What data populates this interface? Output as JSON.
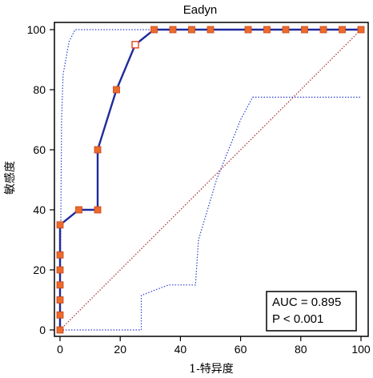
{
  "chart_data": {
    "type": "line",
    "title": "Eadyn",
    "xlabel": "1-特异度",
    "ylabel": "敏感度",
    "xlim": [
      0,
      100
    ],
    "ylim": [
      0,
      100
    ],
    "xticks": [
      "0",
      "20",
      "40",
      "60",
      "80",
      "100"
    ],
    "yticks": [
      "0",
      "20",
      "40",
      "60",
      "80",
      "100"
    ],
    "grid": false,
    "series": [
      {
        "kind": "roc",
        "color": "#1f2a9c",
        "marker_color": "#ee6a2a",
        "points": [
          [
            0,
            0
          ],
          [
            0,
            5
          ],
          [
            0,
            10
          ],
          [
            0,
            15
          ],
          [
            0,
            20
          ],
          [
            0,
            25
          ],
          [
            0,
            35
          ],
          [
            6.25,
            40
          ],
          [
            12.5,
            40
          ],
          [
            12.5,
            60
          ],
          [
            18.75,
            80
          ],
          [
            25,
            95
          ],
          [
            31.25,
            100
          ],
          [
            37.5,
            100
          ],
          [
            43.75,
            100
          ],
          [
            50,
            100
          ],
          [
            62.5,
            100
          ],
          [
            68.75,
            100
          ],
          [
            75,
            100
          ],
          [
            81.25,
            100
          ],
          [
            87.5,
            100
          ],
          [
            93.75,
            100
          ],
          [
            100,
            100
          ]
        ],
        "highlight_point": [
          25,
          95
        ]
      },
      {
        "kind": "ci_upper",
        "color": "#2f3fd0",
        "points": [
          [
            0,
            0
          ],
          [
            0.5,
            70
          ],
          [
            1,
            85
          ],
          [
            3,
            96
          ],
          [
            5,
            100
          ],
          [
            100,
            100
          ]
        ]
      },
      {
        "kind": "ci_lower",
        "color": "#2f3fd0",
        "points": [
          [
            0,
            0
          ],
          [
            27,
            0
          ],
          [
            27,
            11.5
          ],
          [
            36,
            15
          ],
          [
            45,
            15
          ],
          [
            46,
            30
          ],
          [
            52,
            50
          ],
          [
            60,
            70
          ],
          [
            64,
            77.5
          ],
          [
            100,
            77.5
          ]
        ]
      },
      {
        "kind": "reference",
        "color": "#a52a2a",
        "points": [
          [
            0,
            0
          ],
          [
            100,
            100
          ]
        ]
      }
    ],
    "annotation": {
      "lines": [
        "AUC = 0.895",
        "P < 0.001"
      ],
      "placement": "bottom-right"
    }
  }
}
